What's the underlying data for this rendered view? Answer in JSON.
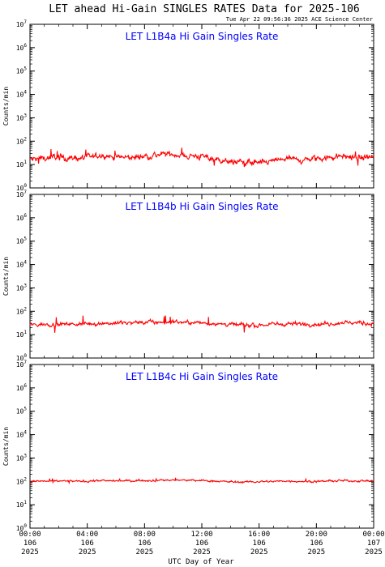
{
  "title": "LET ahead Hi-Gain SINGLES RATES Data for 2025-106",
  "timestamp": "Tue Apr 22 09:56:36 2025 ACE Science Center",
  "xlabel": "UTC Day of Year",
  "x_ticks": [
    {
      "hour": 0,
      "label": "00:00",
      "day": "106",
      "year": "2025"
    },
    {
      "hour": 4,
      "label": "04:00",
      "day": "106",
      "year": "2025"
    },
    {
      "hour": 8,
      "label": "08:00",
      "day": "106",
      "year": "2025"
    },
    {
      "hour": 12,
      "label": "12:00",
      "day": "106",
      "year": "2025"
    },
    {
      "hour": 16,
      "label": "16:00",
      "day": "106",
      "year": "2025"
    },
    {
      "hour": 20,
      "label": "20:00",
      "day": "106",
      "year": "2025"
    },
    {
      "hour": 24,
      "label": "00:00",
      "day": "107",
      "year": "2025"
    }
  ],
  "colors": {
    "series": "#ff0000",
    "panel_title": "#0000ff",
    "axes": "#000000"
  },
  "chart_data": [
    {
      "type": "line",
      "title": "LET L1B4a Hi Gain Singles Rate",
      "ylabel": "Counts/min",
      "yscale": "log",
      "ylim": [
        1,
        10000000
      ],
      "xlim": [
        0,
        24
      ],
      "series": [
        {
          "x": [
            0,
            1,
            2,
            3,
            4,
            5,
            6,
            7,
            8,
            9,
            10,
            11,
            12,
            13,
            14,
            15,
            16,
            17,
            18,
            19,
            20,
            21,
            22,
            23,
            24
          ],
          "values": [
            16,
            19,
            22,
            18,
            20,
            24,
            21,
            19,
            23,
            26,
            28,
            24,
            22,
            18,
            12,
            13,
            11,
            14,
            18,
            15,
            17,
            21,
            23,
            19,
            22
          ]
        }
      ]
    },
    {
      "type": "line",
      "title": "LET L1B4b Hi Gain Singles Rate",
      "ylabel": "Counts/min",
      "yscale": "log",
      "ylim": [
        1,
        10000000
      ],
      "xlim": [
        0,
        24
      ],
      "series": [
        {
          "x": [
            0,
            1,
            2,
            3,
            4,
            5,
            6,
            7,
            8,
            9,
            10,
            11,
            12,
            13,
            14,
            15,
            16,
            17,
            18,
            19,
            20,
            21,
            22,
            23,
            24
          ],
          "values": [
            26,
            27,
            29,
            28,
            30,
            31,
            30,
            32,
            33,
            34,
            36,
            33,
            32,
            30,
            27,
            26,
            25,
            28,
            30,
            29,
            28,
            30,
            33,
            32,
            30
          ]
        }
      ]
    },
    {
      "type": "line",
      "title": "LET L1B4c Hi Gain Singles Rate",
      "ylabel": "Counts/min",
      "yscale": "log",
      "ylim": [
        1,
        10000000
      ],
      "xlim": [
        0,
        24
      ],
      "series": [
        {
          "x": [
            0,
            1,
            2,
            3,
            4,
            5,
            6,
            7,
            8,
            9,
            10,
            11,
            12,
            13,
            14,
            15,
            16,
            17,
            18,
            19,
            20,
            21,
            22,
            23,
            24
          ],
          "values": [
            98,
            102,
            105,
            100,
            103,
            108,
            104,
            106,
            110,
            112,
            115,
            110,
            108,
            103,
            95,
            93,
            97,
            100,
            104,
            101,
            99,
            103,
            107,
            105,
            104
          ]
        }
      ]
    }
  ]
}
